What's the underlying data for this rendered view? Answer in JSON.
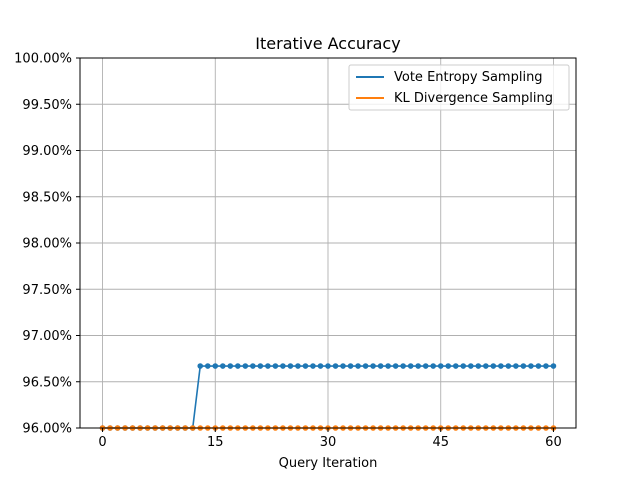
{
  "chart_data": {
    "type": "line",
    "title": "Iterative Accuracy",
    "xlabel": "Query Iteration",
    "ylabel": "",
    "xlim": [
      -3,
      63
    ],
    "ylim": [
      0.96,
      1.0
    ],
    "xticks": [
      0,
      15,
      30,
      45,
      60
    ],
    "xtick_labels": [
      "0",
      "15",
      "30",
      "45",
      "60"
    ],
    "yticks": [
      0.96,
      0.965,
      0.97,
      0.975,
      0.98,
      0.985,
      0.99,
      0.995,
      1.0
    ],
    "ytick_labels": [
      "96.00%",
      "96.50%",
      "97.00%",
      "97.50%",
      "98.00%",
      "98.50%",
      "99.00%",
      "99.50%",
      "100.00%"
    ],
    "grid": true,
    "legend_position": "top-right",
    "series": [
      {
        "name": "Vote Entropy Sampling",
        "color": "#1f77b4",
        "x": [
          0,
          1,
          2,
          3,
          4,
          5,
          6,
          7,
          8,
          9,
          10,
          11,
          12,
          13,
          14,
          15,
          16,
          17,
          18,
          19,
          20,
          21,
          22,
          23,
          24,
          25,
          26,
          27,
          28,
          29,
          30,
          31,
          32,
          33,
          34,
          35,
          36,
          37,
          38,
          39,
          40,
          41,
          42,
          43,
          44,
          45,
          46,
          47,
          48,
          49,
          50,
          51,
          52,
          53,
          54,
          55,
          56,
          57,
          58,
          59,
          60
        ],
        "y": [
          0.96,
          0.96,
          0.96,
          0.96,
          0.96,
          0.96,
          0.96,
          0.96,
          0.96,
          0.96,
          0.96,
          0.96,
          0.96,
          0.9667,
          0.9667,
          0.9667,
          0.9667,
          0.9667,
          0.9667,
          0.9667,
          0.9667,
          0.9667,
          0.9667,
          0.9667,
          0.9667,
          0.9667,
          0.9667,
          0.9667,
          0.9667,
          0.9667,
          0.9667,
          0.9667,
          0.9667,
          0.9667,
          0.9667,
          0.9667,
          0.9667,
          0.9667,
          0.9667,
          0.9667,
          0.9667,
          0.9667,
          0.9667,
          0.9667,
          0.9667,
          0.9667,
          0.9667,
          0.9667,
          0.9667,
          0.9667,
          0.9667,
          0.9667,
          0.9667,
          0.9667,
          0.9667,
          0.9667,
          0.9667,
          0.9667,
          0.9667,
          0.9667,
          0.9667
        ]
      },
      {
        "name": "KL Divergence Sampling",
        "color": "#ff7f0e",
        "x": [
          0,
          1,
          2,
          3,
          4,
          5,
          6,
          7,
          8,
          9,
          10,
          11,
          12,
          13,
          14,
          15,
          16,
          17,
          18,
          19,
          20,
          21,
          22,
          23,
          24,
          25,
          26,
          27,
          28,
          29,
          30,
          31,
          32,
          33,
          34,
          35,
          36,
          37,
          38,
          39,
          40,
          41,
          42,
          43,
          44,
          45,
          46,
          47,
          48,
          49,
          50,
          51,
          52,
          53,
          54,
          55,
          56,
          57,
          58,
          59,
          60
        ],
        "y": [
          0.96,
          0.96,
          0.96,
          0.96,
          0.96,
          0.96,
          0.96,
          0.96,
          0.96,
          0.96,
          0.96,
          0.96,
          0.96,
          0.96,
          0.96,
          0.96,
          0.96,
          0.96,
          0.96,
          0.96,
          0.96,
          0.96,
          0.96,
          0.96,
          0.96,
          0.96,
          0.96,
          0.96,
          0.96,
          0.96,
          0.96,
          0.96,
          0.96,
          0.96,
          0.96,
          0.96,
          0.96,
          0.96,
          0.96,
          0.96,
          0.96,
          0.96,
          0.96,
          0.96,
          0.96,
          0.96,
          0.96,
          0.96,
          0.96,
          0.96,
          0.96,
          0.96,
          0.96,
          0.96,
          0.96,
          0.96,
          0.96,
          0.96,
          0.96,
          0.96,
          0.96
        ]
      }
    ]
  }
}
